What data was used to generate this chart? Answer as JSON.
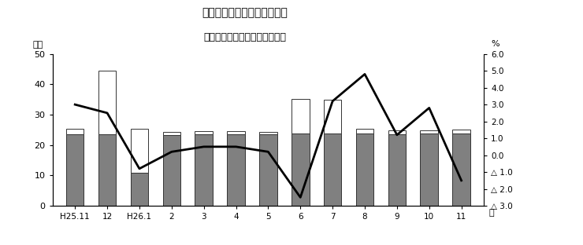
{
  "title_line1": "第１図　現金給与総額の推移",
  "title_line2": "（規模５人以上　調査産業計）",
  "xlabel_bottom": "月",
  "ylabel_left": "万円",
  "ylabel_right": "%",
  "categories": [
    "H25.11",
    "12",
    "H26.1",
    "2",
    "3",
    "4",
    "5",
    "6",
    "7",
    "8",
    "9",
    "10",
    "11"
  ],
  "regular_pay": [
    23.5,
    23.5,
    10.8,
    23.2,
    23.5,
    23.5,
    23.5,
    23.8,
    23.8,
    23.8,
    23.5,
    23.8,
    23.8
  ],
  "special_pay": [
    1.8,
    21.0,
    14.5,
    1.0,
    1.2,
    1.2,
    0.7,
    11.5,
    11.2,
    1.5,
    1.3,
    1.0,
    1.2
  ],
  "yoy_rate": [
    3.0,
    2.5,
    -0.8,
    0.2,
    0.5,
    0.5,
    0.2,
    -2.5,
    3.2,
    4.8,
    1.2,
    2.8,
    -1.5
  ],
  "ylim_left": [
    0,
    50
  ],
  "ylim_right": [
    -3.0,
    6.0
  ],
  "yticks_left": [
    0,
    10,
    20,
    30,
    40,
    50
  ],
  "ytick_right_vals": [
    6.0,
    5.0,
    4.0,
    3.0,
    2.0,
    1.0,
    0.0,
    -1.0,
    -2.0,
    -3.0
  ],
  "ytick_right_labels": [
    "6.0",
    "5.0",
    "4.0",
    "3.0",
    "2.0",
    "1.0",
    "0.0",
    "△ 1.0",
    "△ 2.0",
    "△ 3.0"
  ],
  "bar_color_regular": "#808080",
  "bar_color_special": "#ffffff",
  "bar_edgecolor": "#333333",
  "line_color": "#000000",
  "background_color": "#ffffff",
  "figsize": [
    7.4,
    3.12
  ],
  "dpi": 100
}
